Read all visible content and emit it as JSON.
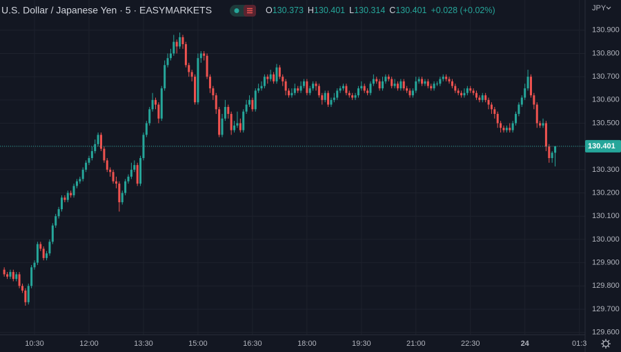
{
  "chart_data": {
    "type": "candlestick",
    "title": "U.S. Dollar / Japanese Yen · 5 · EASYMARKETS",
    "currency": "JPY",
    "ohlc_labels": [
      "O",
      "H",
      "L",
      "C"
    ],
    "change": "+0.028 (+0.02%)",
    "up_color": "#26a69a",
    "down_color": "#ef5350",
    "grid": true,
    "xlim": [
      -1.4,
      191.9
    ],
    "ylim": [
      129.59,
      131.03
    ],
    "xticks": [
      {
        "value": 10,
        "label": "10:30"
      },
      {
        "value": 28,
        "label": "12:00"
      },
      {
        "value": 46,
        "label": "13:30"
      },
      {
        "value": 64,
        "label": "15:00"
      },
      {
        "value": 82,
        "label": "16:30"
      },
      {
        "value": 100,
        "label": "18:00"
      },
      {
        "value": 118,
        "label": "19:30"
      },
      {
        "value": 136,
        "label": "21:00"
      },
      {
        "value": 154,
        "label": "22:30"
      },
      {
        "value": 172,
        "label": "24"
      },
      {
        "value": 190,
        "label": "01:3"
      }
    ],
    "yticks": [
      {
        "value": 129.6,
        "label": "129.600"
      },
      {
        "value": 129.7,
        "label": "129.700"
      },
      {
        "value": 129.8,
        "label": "129.800"
      },
      {
        "value": 129.9,
        "label": "129.900"
      },
      {
        "value": 130.0,
        "label": "130.000"
      },
      {
        "value": 130.1,
        "label": "130.100"
      },
      {
        "value": 130.2,
        "label": "130.200"
      },
      {
        "value": 130.3,
        "label": "130.300"
      },
      {
        "value": 130.4,
        "label": "130.400"
      },
      {
        "value": 130.5,
        "label": "130.500"
      },
      {
        "value": 130.6,
        "label": "130.600"
      },
      {
        "value": 130.7,
        "label": "130.700"
      },
      {
        "value": 130.8,
        "label": "130.800"
      },
      {
        "value": 130.9,
        "label": "130.900"
      }
    ],
    "ohlc": [
      [
        129.87,
        129.88,
        129.84,
        129.85
      ],
      [
        129.85,
        129.86,
        129.83,
        129.84
      ],
      [
        129.84,
        129.87,
        129.83,
        129.86
      ],
      [
        129.86,
        129.87,
        129.82,
        129.83
      ],
      [
        129.83,
        129.86,
        129.82,
        129.85
      ],
      [
        129.85,
        129.86,
        129.79,
        129.8
      ],
      [
        129.8,
        129.81,
        129.77,
        129.78
      ],
      [
        129.78,
        129.79,
        129.715,
        129.73
      ],
      [
        129.73,
        129.81,
        129.72,
        129.8
      ],
      [
        129.8,
        129.89,
        129.79,
        129.88
      ],
      [
        129.88,
        129.91,
        129.87,
        129.9
      ],
      [
        129.9,
        129.99,
        129.89,
        129.98
      ],
      [
        129.98,
        129.99,
        129.95,
        129.96
      ],
      [
        129.96,
        129.97,
        129.91,
        129.92
      ],
      [
        129.92,
        129.95,
        129.91,
        129.94
      ],
      [
        129.94,
        130.0,
        129.93,
        129.99
      ],
      [
        129.99,
        130.07,
        129.98,
        130.06
      ],
      [
        130.06,
        130.11,
        130.05,
        130.1
      ],
      [
        130.1,
        130.14,
        130.09,
        130.13
      ],
      [
        130.13,
        130.19,
        130.12,
        130.18
      ],
      [
        130.18,
        130.19,
        130.16,
        130.17
      ],
      [
        130.17,
        130.21,
        130.16,
        130.2
      ],
      [
        130.2,
        130.21,
        130.18,
        130.19
      ],
      [
        130.19,
        130.24,
        130.18,
        130.23
      ],
      [
        130.23,
        130.26,
        130.22,
        130.25
      ],
      [
        130.25,
        130.27,
        130.24,
        130.26
      ],
      [
        130.26,
        130.31,
        130.25,
        130.3
      ],
      [
        130.3,
        130.34,
        130.29,
        130.33
      ],
      [
        130.33,
        130.36,
        130.32,
        130.35
      ],
      [
        130.35,
        130.4,
        130.34,
        130.38
      ],
      [
        130.38,
        130.43,
        130.37,
        130.41
      ],
      [
        130.41,
        130.46,
        130.4,
        130.45
      ],
      [
        130.45,
        130.46,
        130.38,
        130.39
      ],
      [
        130.39,
        130.4,
        130.33,
        130.34
      ],
      [
        130.34,
        130.35,
        130.29,
        130.3
      ],
      [
        130.3,
        130.31,
        130.27,
        130.29
      ],
      [
        130.29,
        130.3,
        130.24,
        130.25
      ],
      [
        130.25,
        130.27,
        130.22,
        130.24
      ],
      [
        130.24,
        130.25,
        130.12,
        130.16
      ],
      [
        130.16,
        130.21,
        130.15,
        130.2
      ],
      [
        130.2,
        130.26,
        130.19,
        130.25
      ],
      [
        130.25,
        130.28,
        130.24,
        130.27
      ],
      [
        130.27,
        130.33,
        130.26,
        130.3
      ],
      [
        130.3,
        130.34,
        130.29,
        130.32
      ],
      [
        130.32,
        130.33,
        130.23,
        130.24
      ],
      [
        130.24,
        130.36,
        130.23,
        130.35
      ],
      [
        130.35,
        130.46,
        130.34,
        130.45
      ],
      [
        130.45,
        130.51,
        130.44,
        130.5
      ],
      [
        130.5,
        130.57,
        130.49,
        130.56
      ],
      [
        130.56,
        130.63,
        130.55,
        130.6
      ],
      [
        130.6,
        130.61,
        130.56,
        130.58
      ],
      [
        130.58,
        130.59,
        130.5,
        130.52
      ],
      [
        130.52,
        130.66,
        130.51,
        130.65
      ],
      [
        130.65,
        130.77,
        130.64,
        130.75
      ],
      [
        130.75,
        130.8,
        130.74,
        130.78
      ],
      [
        130.78,
        130.82,
        130.77,
        130.8
      ],
      [
        130.8,
        130.88,
        130.79,
        130.85
      ],
      [
        130.85,
        130.86,
        130.8,
        130.83
      ],
      [
        130.83,
        130.89,
        130.82,
        130.87
      ],
      [
        130.87,
        130.88,
        130.82,
        130.84
      ],
      [
        130.84,
        130.85,
        130.74,
        130.75
      ],
      [
        130.75,
        130.76,
        130.7,
        130.72
      ],
      [
        130.72,
        130.73,
        130.68,
        130.7
      ],
      [
        130.7,
        130.71,
        130.58,
        130.59
      ],
      [
        130.59,
        130.8,
        130.58,
        130.78
      ],
      [
        130.78,
        130.81,
        130.76,
        130.8
      ],
      [
        130.8,
        130.81,
        130.77,
        130.79
      ],
      [
        130.79,
        130.8,
        130.69,
        130.7
      ],
      [
        130.7,
        130.71,
        130.63,
        130.65
      ],
      [
        130.65,
        130.66,
        130.6,
        130.62
      ],
      [
        130.62,
        130.63,
        130.54,
        130.56
      ],
      [
        130.56,
        130.57,
        130.44,
        130.45
      ],
      [
        130.45,
        130.54,
        130.44,
        130.52
      ],
      [
        130.52,
        130.6,
        130.51,
        130.57
      ],
      [
        130.57,
        130.58,
        130.52,
        130.54
      ],
      [
        130.54,
        130.55,
        130.45,
        130.47
      ],
      [
        130.47,
        130.51,
        130.46,
        130.49
      ],
      [
        130.49,
        130.55,
        130.48,
        130.5
      ],
      [
        130.5,
        130.52,
        130.46,
        130.47
      ],
      [
        130.47,
        130.56,
        130.46,
        130.55
      ],
      [
        130.55,
        130.6,
        130.54,
        130.58
      ],
      [
        130.58,
        130.62,
        130.57,
        130.6
      ],
      [
        130.6,
        130.61,
        130.55,
        130.56
      ],
      [
        130.56,
        130.65,
        130.55,
        130.64
      ],
      [
        130.64,
        130.67,
        130.63,
        130.65
      ],
      [
        130.65,
        130.68,
        130.64,
        130.66
      ],
      [
        130.66,
        130.71,
        130.65,
        130.7
      ],
      [
        130.7,
        130.71,
        130.67,
        130.69
      ],
      [
        130.69,
        130.73,
        130.68,
        130.71
      ],
      [
        130.71,
        130.72,
        130.67,
        130.68
      ],
      [
        130.68,
        130.755,
        130.67,
        130.74
      ],
      [
        130.74,
        130.75,
        130.69,
        130.7
      ],
      [
        130.7,
        130.71,
        130.66,
        130.68
      ],
      [
        130.68,
        130.69,
        130.62,
        130.64
      ],
      [
        130.64,
        130.65,
        130.61,
        130.62
      ],
      [
        130.62,
        130.65,
        130.61,
        130.63
      ],
      [
        130.63,
        130.67,
        130.62,
        130.65
      ],
      [
        130.65,
        130.66,
        130.63,
        130.64
      ],
      [
        130.64,
        130.68,
        130.63,
        130.66
      ],
      [
        130.66,
        130.69,
        130.65,
        130.68
      ],
      [
        130.68,
        130.69,
        130.62,
        130.63
      ],
      [
        130.63,
        130.66,
        130.62,
        130.65
      ],
      [
        130.65,
        130.68,
        130.64,
        130.67
      ],
      [
        130.67,
        130.68,
        130.64,
        130.66
      ],
      [
        130.66,
        130.67,
        130.61,
        130.62
      ],
      [
        130.62,
        130.63,
        130.58,
        130.6
      ],
      [
        130.6,
        130.64,
        130.59,
        130.63
      ],
      [
        130.63,
        130.64,
        130.57,
        130.58
      ],
      [
        130.58,
        130.61,
        130.57,
        130.6
      ],
      [
        130.6,
        130.63,
        130.59,
        130.61
      ],
      [
        130.61,
        130.65,
        130.6,
        130.64
      ],
      [
        130.64,
        130.66,
        130.63,
        130.65
      ],
      [
        130.65,
        130.67,
        130.64,
        130.66
      ],
      [
        130.66,
        130.67,
        130.62,
        130.63
      ],
      [
        130.63,
        130.64,
        130.61,
        130.62
      ],
      [
        130.62,
        130.63,
        130.6,
        130.61
      ],
      [
        130.61,
        130.63,
        130.6,
        130.62
      ],
      [
        130.62,
        130.66,
        130.61,
        130.65
      ],
      [
        130.65,
        130.68,
        130.64,
        130.66
      ],
      [
        130.66,
        130.67,
        130.63,
        130.64
      ],
      [
        130.64,
        130.65,
        130.62,
        130.63
      ],
      [
        130.63,
        130.68,
        130.62,
        130.67
      ],
      [
        130.67,
        130.71,
        130.66,
        130.69
      ],
      [
        130.69,
        130.7,
        130.67,
        130.68
      ],
      [
        130.68,
        130.69,
        130.64,
        130.65
      ],
      [
        130.65,
        130.7,
        130.64,
        130.68
      ],
      [
        130.68,
        130.71,
        130.67,
        130.7
      ],
      [
        130.7,
        130.71,
        130.68,
        130.69
      ],
      [
        130.69,
        130.7,
        130.65,
        130.66
      ],
      [
        130.66,
        130.69,
        130.65,
        130.67
      ],
      [
        130.67,
        130.68,
        130.64,
        130.65
      ],
      [
        130.65,
        130.69,
        130.64,
        130.68
      ],
      [
        130.68,
        130.69,
        130.64,
        130.65
      ],
      [
        130.65,
        130.66,
        130.63,
        130.64
      ],
      [
        130.64,
        130.65,
        130.61,
        130.62
      ],
      [
        130.62,
        130.65,
        130.61,
        130.64
      ],
      [
        130.64,
        130.7,
        130.63,
        130.68
      ],
      [
        130.68,
        130.7,
        130.67,
        130.69
      ],
      [
        130.69,
        130.7,
        130.66,
        130.67
      ],
      [
        130.67,
        130.69,
        130.66,
        130.68
      ],
      [
        130.68,
        130.69,
        130.65,
        130.66
      ],
      [
        130.66,
        130.67,
        130.64,
        130.65
      ],
      [
        130.65,
        130.68,
        130.64,
        130.67
      ],
      [
        130.67,
        130.68,
        130.66,
        130.67
      ],
      [
        130.67,
        130.7,
        130.66,
        130.69
      ],
      [
        130.69,
        130.71,
        130.68,
        130.7
      ],
      [
        130.7,
        130.71,
        130.68,
        130.69
      ],
      [
        130.69,
        130.7,
        130.67,
        130.68
      ],
      [
        130.68,
        130.69,
        130.65,
        130.66
      ],
      [
        130.66,
        130.67,
        130.63,
        130.64
      ],
      [
        130.64,
        130.65,
        130.62,
        130.63
      ],
      [
        130.63,
        130.64,
        130.61,
        130.62
      ],
      [
        130.62,
        130.65,
        130.61,
        130.63
      ],
      [
        130.63,
        130.66,
        130.62,
        130.65
      ],
      [
        130.65,
        130.66,
        130.63,
        130.64
      ],
      [
        130.64,
        130.65,
        130.62,
        130.63
      ],
      [
        130.63,
        130.64,
        130.6,
        130.61
      ],
      [
        130.61,
        130.62,
        130.59,
        130.6
      ],
      [
        130.6,
        130.63,
        130.59,
        130.62
      ],
      [
        130.62,
        130.63,
        130.59,
        130.6
      ],
      [
        130.6,
        130.61,
        130.56,
        130.58
      ],
      [
        130.58,
        130.59,
        130.54,
        130.56
      ],
      [
        130.56,
        130.57,
        130.52,
        130.54
      ],
      [
        130.54,
        130.55,
        130.48,
        130.5
      ],
      [
        130.5,
        130.51,
        130.46,
        130.48
      ],
      [
        130.48,
        130.49,
        130.46,
        130.47
      ],
      [
        130.47,
        130.49,
        130.46,
        130.48
      ],
      [
        130.48,
        130.5,
        130.46,
        130.47
      ],
      [
        130.47,
        130.51,
        130.46,
        130.5
      ],
      [
        130.5,
        130.55,
        130.49,
        130.54
      ],
      [
        130.54,
        130.59,
        130.53,
        130.58
      ],
      [
        130.58,
        130.62,
        130.57,
        130.61
      ],
      [
        130.61,
        130.67,
        130.6,
        130.65
      ],
      [
        130.65,
        130.73,
        130.64,
        130.7
      ],
      [
        130.7,
        130.71,
        130.61,
        130.62
      ],
      [
        130.62,
        130.63,
        130.56,
        130.58
      ],
      [
        130.58,
        130.59,
        130.48,
        130.5
      ],
      [
        130.5,
        130.51,
        130.48,
        130.49
      ],
      [
        130.49,
        130.52,
        130.48,
        130.5
      ],
      [
        130.5,
        130.51,
        130.38,
        130.4
      ],
      [
        130.4,
        130.41,
        130.33,
        130.35
      ],
      [
        130.35,
        130.38,
        130.33,
        130.373
      ],
      [
        130.373,
        130.401,
        130.314,
        130.401
      ]
    ]
  }
}
